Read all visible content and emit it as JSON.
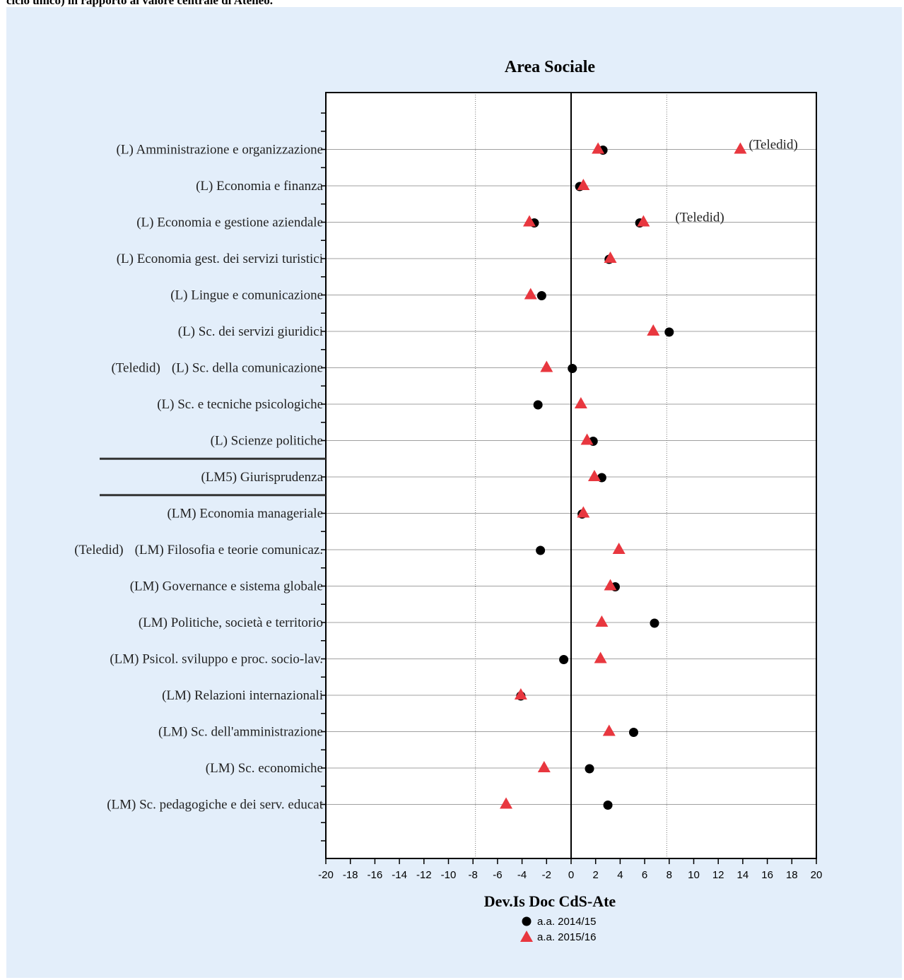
{
  "page": {
    "header_text": "ciclo unico) in rapporto al valore centrale di Ateneo."
  },
  "chart_data": {
    "type": "scatter",
    "title": "Area Sociale",
    "xlabel": "Dev.Is Doc CdS-Ate",
    "ylabel": "",
    "xlim": [
      -20,
      20
    ],
    "xticks": [
      -20,
      -18,
      -16,
      -14,
      -12,
      -10,
      -8,
      -6,
      -4,
      -2,
      0,
      2,
      4,
      6,
      8,
      10,
      12,
      14,
      16,
      18,
      20
    ],
    "xtick_labels": [
      "-20",
      "-18",
      "-16",
      "-14",
      "-12",
      "-10",
      "-8",
      "-6",
      "-4",
      "-2",
      "0",
      "2",
      "4",
      "6",
      "8",
      "10",
      "12",
      "14",
      "16",
      "18",
      "20"
    ],
    "reference_lines": [
      -7.8,
      0,
      7.8
    ],
    "categories": [
      "(L) Amministrazione e organizzazione",
      "(L) Economia e finanza",
      "(L) Economia e gestione aziendale",
      "(L) Economia gest. dei servizi turistici",
      "(L) Lingue e comunicazione",
      "(L) Sc. dei servizi giuridici",
      "(L) Sc. della comunicazione",
      "(L) Sc. e tecniche psicologiche",
      "(L) Scienze politiche",
      "(LM5) Giurisprudenza",
      "(LM) Economia manageriale",
      "(LM) Filosofia e teorie comunicaz.",
      "(LM) Governance e sistema globale",
      "(LM) Politiche, società e territorio",
      "(LM) Psicol. sviluppo e proc. socio-lav.",
      "(LM) Relazioni internazionali",
      "(LM) Sc. dell'amministrazione",
      "(LM) Sc. economiche",
      "(LM) Sc. pedagogiche e dei serv. educat"
    ],
    "separators_after_index": [
      8,
      9
    ],
    "series": [
      {
        "name": "a.a. 2014/15",
        "marker": "circle",
        "color": "#000000",
        "points": [
          {
            "row": 0,
            "x": 2.6
          },
          {
            "row": 1,
            "x": 0.7
          },
          {
            "row": 2,
            "x": -3.0
          },
          {
            "row": 2,
            "x": 5.6
          },
          {
            "row": 3,
            "x": 3.1
          },
          {
            "row": 4,
            "x": -2.4
          },
          {
            "row": 5,
            "x": 8.0
          },
          {
            "row": 6,
            "x": 0.1
          },
          {
            "row": 7,
            "x": -2.7
          },
          {
            "row": 8,
            "x": 1.8
          },
          {
            "row": 9,
            "x": 2.5
          },
          {
            "row": 10,
            "x": 0.9
          },
          {
            "row": 11,
            "x": -2.5
          },
          {
            "row": 12,
            "x": 3.6
          },
          {
            "row": 13,
            "x": 6.8
          },
          {
            "row": 14,
            "x": -0.6
          },
          {
            "row": 15,
            "x": -4.1
          },
          {
            "row": 16,
            "x": 5.1
          },
          {
            "row": 17,
            "x": 1.5
          },
          {
            "row": 18,
            "x": 3.0
          }
        ]
      },
      {
        "name": "a.a. 2015/16",
        "marker": "triangle",
        "color": "#e8373f",
        "points": [
          {
            "row": 0,
            "x": 2.2
          },
          {
            "row": 0,
            "x": 13.8
          },
          {
            "row": 1,
            "x": 1.0
          },
          {
            "row": 2,
            "x": -3.4
          },
          {
            "row": 2,
            "x": 5.9
          },
          {
            "row": 3,
            "x": 3.2
          },
          {
            "row": 4,
            "x": -3.3
          },
          {
            "row": 5,
            "x": 6.7
          },
          {
            "row": 6,
            "x": -2.0
          },
          {
            "row": 7,
            "x": 0.8
          },
          {
            "row": 8,
            "x": 1.3
          },
          {
            "row": 9,
            "x": 1.9
          },
          {
            "row": 10,
            "x": 1.0
          },
          {
            "row": 11,
            "x": 3.9
          },
          {
            "row": 12,
            "x": 3.2
          },
          {
            "row": 13,
            "x": 2.5
          },
          {
            "row": 14,
            "x": 2.4
          },
          {
            "row": 15,
            "x": -4.1
          },
          {
            "row": 16,
            "x": 3.1
          },
          {
            "row": 17,
            "x": -2.2
          },
          {
            "row": 18,
            "x": -5.3
          }
        ]
      }
    ],
    "annotations": [
      {
        "text": "(Teledid)",
        "row": 0,
        "anchor": "after-point",
        "x": 13.8
      },
      {
        "text": "(Teledid)",
        "row": 2,
        "anchor": "after-point",
        "x": 7.8
      },
      {
        "text": "(Teledid)",
        "row": 6,
        "anchor": "before-label"
      },
      {
        "text": "(Teledid)",
        "row": 11,
        "anchor": "before-label"
      }
    ],
    "legend": {
      "position": "bottom-center",
      "entries": [
        "a.a. 2014/15",
        "a.a. 2015/16"
      ]
    },
    "grid": {
      "horizontal": true,
      "vertical": false
    }
  }
}
